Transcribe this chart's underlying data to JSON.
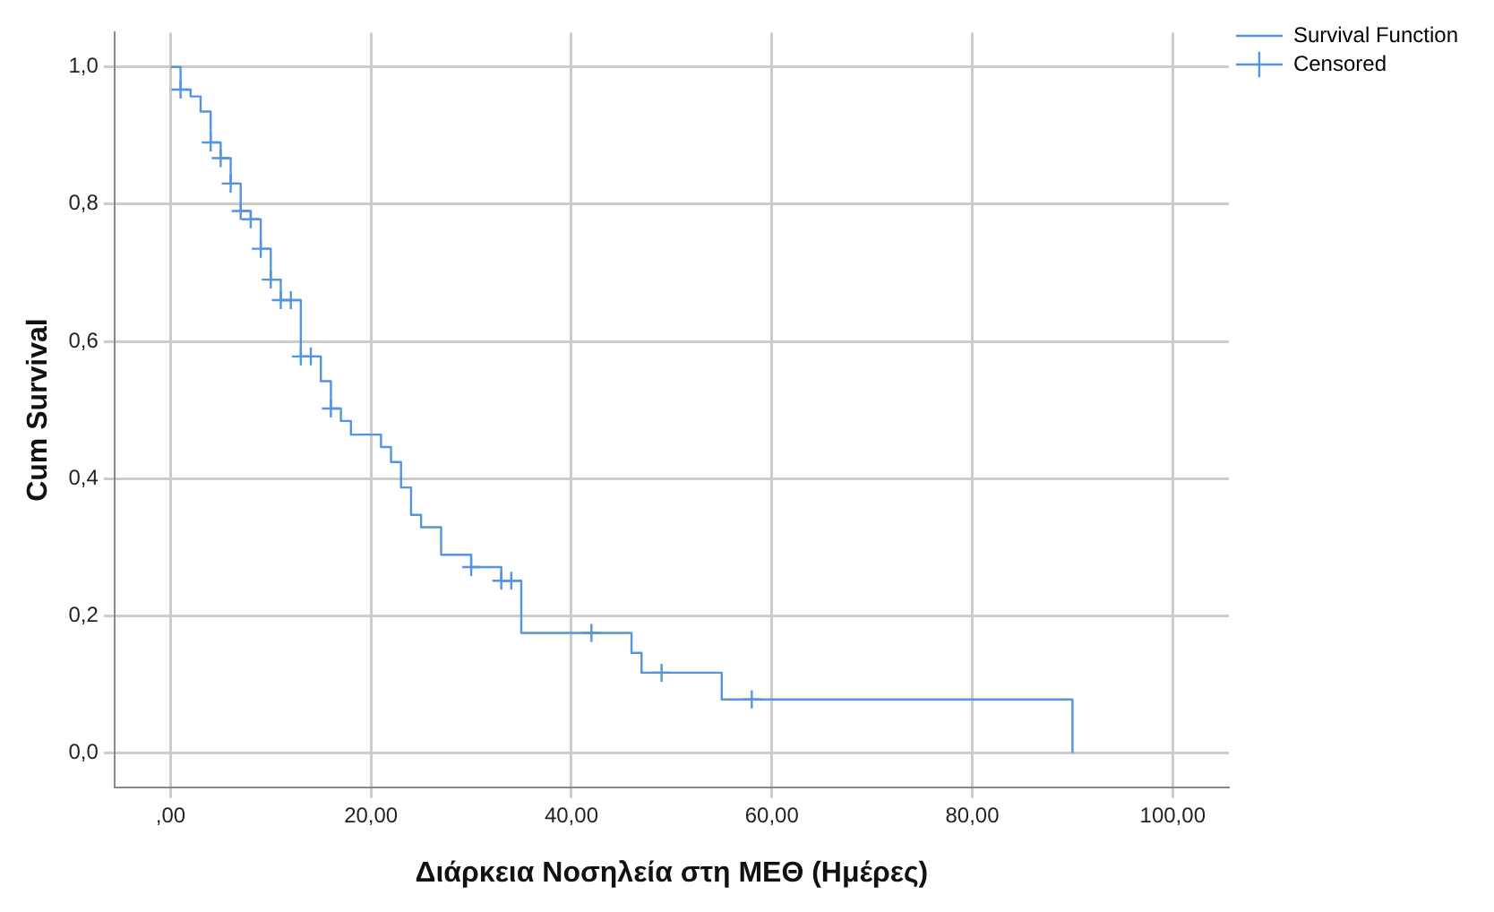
{
  "chart_data": {
    "type": "step",
    "xlabel": "Διάρκεια Νοσηλεία στη ΜΕΘ (Ημέρες)",
    "ylabel": "Cum Survival",
    "series": [
      {
        "name": "Survival Function",
        "type": "step",
        "color": "#5594e0",
        "marker": "none",
        "x": [
          0,
          1,
          2,
          3,
          4,
          5,
          6,
          7,
          8,
          9,
          10,
          11,
          13,
          15,
          16,
          17,
          18,
          21,
          22,
          23,
          24,
          25,
          27,
          30,
          33,
          35,
          46,
          47,
          55,
          90
        ],
        "values": [
          1,
          0.967,
          0.957,
          0.935,
          0.89,
          0.867,
          0.83,
          0.79,
          0.778,
          0.735,
          0.69,
          0.66,
          0.578,
          0.542,
          0.502,
          0.484,
          0.464,
          0.446,
          0.424,
          0.387,
          0.347,
          0.329,
          0.289,
          0.271,
          0.251,
          0.175,
          0.146,
          0.117,
          0.078,
          0
        ]
      },
      {
        "name": "Censored",
        "type": "scatter",
        "color": "#5594e0",
        "marker": "cross",
        "x": [
          1,
          4,
          5,
          6,
          7,
          8,
          9,
          10,
          11,
          12,
          13,
          14,
          16,
          30,
          33,
          34,
          42,
          49,
          58
        ],
        "values": [
          0.967,
          0.89,
          0.867,
          0.83,
          0.79,
          0.778,
          0.735,
          0.69,
          0.66,
          0.66,
          0.578,
          0.578,
          0.502,
          0.271,
          0.251,
          0.251,
          0.175,
          0.117,
          0.078
        ]
      }
    ],
    "xlim": [
      -5.6,
      105.6
    ],
    "xticks": [
      {
        "value": 0,
        "label": ",00"
      },
      {
        "value": 20,
        "label": "20,00"
      },
      {
        "value": 40,
        "label": "40,00"
      },
      {
        "value": 60,
        "label": "60,00"
      },
      {
        "value": 80,
        "label": "80,00"
      },
      {
        "value": 100,
        "label": "100,00"
      }
    ],
    "ylim": [
      -0.05,
      1.05
    ],
    "yticks": [
      {
        "value": 0,
        "label": "0,0"
      },
      {
        "value": 0.2,
        "label": "0,2"
      },
      {
        "value": 0.4,
        "label": "0,4"
      },
      {
        "value": 0.6,
        "label": "0,6"
      },
      {
        "value": 0.8,
        "label": "0,8"
      },
      {
        "value": 1,
        "label": "1,0"
      }
    ],
    "grid": true,
    "legend": "top right"
  }
}
